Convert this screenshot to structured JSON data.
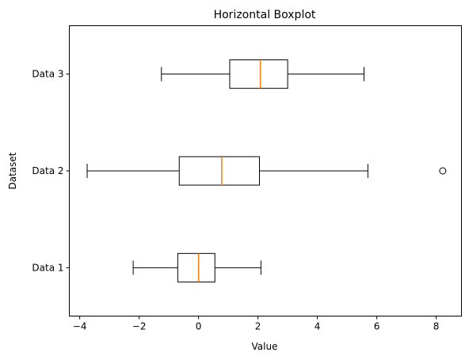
{
  "chart_data": {
    "type": "boxplot",
    "orientation": "horizontal",
    "title": "Horizontal Boxplot",
    "xlabel": "Value",
    "ylabel": "Dataset",
    "xlim": [
      -4.35,
      8.85
    ],
    "xticks": [
      -4,
      -2,
      0,
      2,
      4,
      6,
      8
    ],
    "xtick_labels": [
      "−4",
      "−2",
      "0",
      "2",
      "4",
      "6",
      "8"
    ],
    "grid": false,
    "colors": {
      "box": "#000000",
      "median": "#ff7f0e"
    },
    "series": [
      {
        "name": "Data 1",
        "whisker_low": -2.2,
        "q1": -0.7,
        "median": 0.0,
        "q3": 0.55,
        "whisker_high": 2.1,
        "outliers": []
      },
      {
        "name": "Data 2",
        "whisker_low": -3.75,
        "q1": -0.65,
        "median": 0.78,
        "q3": 2.05,
        "whisker_high": 5.7,
        "outliers": [
          8.22
        ]
      },
      {
        "name": "Data 3",
        "whisker_low": -1.25,
        "q1": 1.05,
        "median": 2.08,
        "q3": 3.0,
        "whisker_high": 5.57,
        "outliers": []
      }
    ]
  }
}
